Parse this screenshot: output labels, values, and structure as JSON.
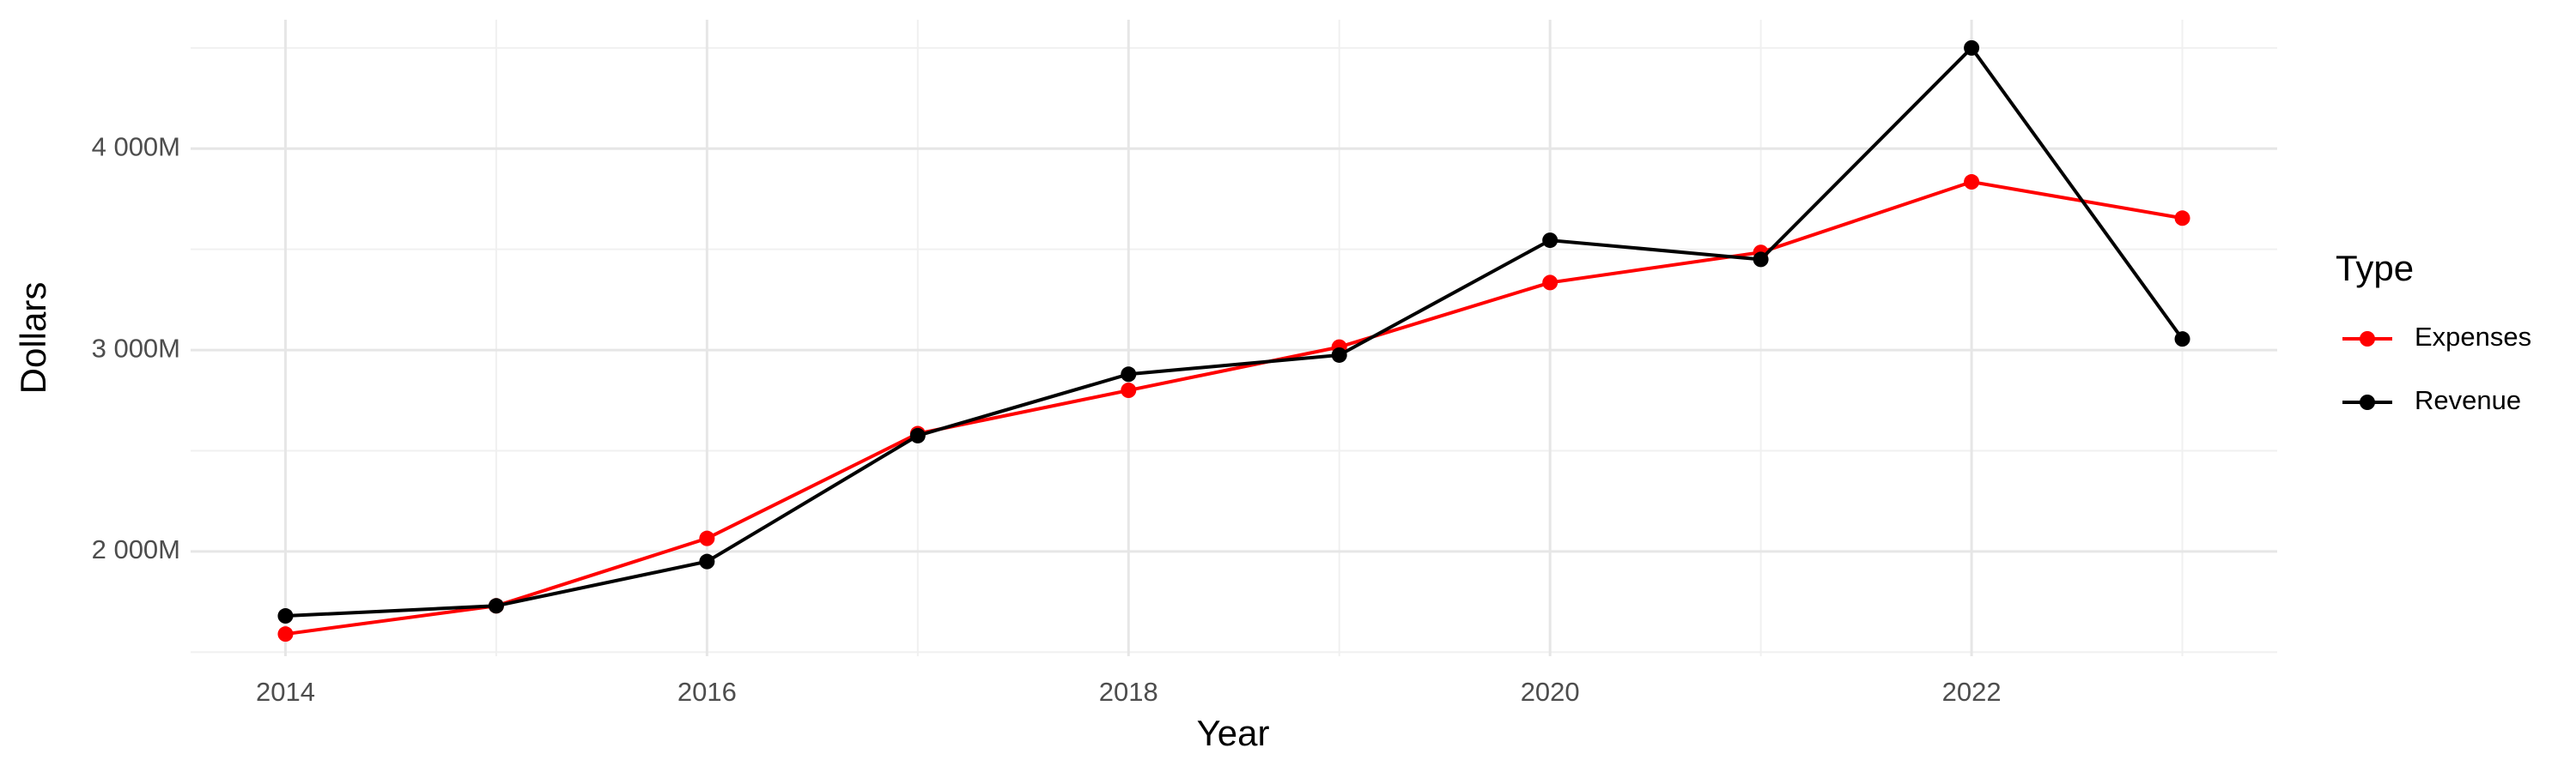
{
  "chart_data": {
    "type": "line",
    "x_label": "Year",
    "y_label": "Dollars",
    "x": [
      2014,
      2015,
      2016,
      2017,
      2018,
      2019,
      2020,
      2021,
      2022,
      2023
    ],
    "series": [
      {
        "name": "Expenses",
        "color": "#ff0000",
        "values": [
          1590,
          1730,
          2065,
          2585,
          2800,
          3015,
          3335,
          3485,
          3835,
          3655
        ]
      },
      {
        "name": "Revenue",
        "color": "#000000",
        "values": [
          1680,
          1730,
          1950,
          2575,
          2880,
          2975,
          3545,
          3450,
          4500,
          3055
        ]
      }
    ],
    "xlim": [
      2013.55,
      2023.45
    ],
    "xticks": [
      2014,
      2016,
      2018,
      2020,
      2022
    ],
    "x_minor_ticks": [
      2015,
      2017,
      2019,
      2021,
      2023
    ],
    "ylim": [
      1480,
      4640
    ],
    "yticks": [
      {
        "value": 2000,
        "label": "2 000M"
      },
      {
        "value": 3000,
        "label": "3 000M"
      },
      {
        "value": 4000,
        "label": "4 000M"
      }
    ],
    "y_minor_ticks": [
      1500,
      2500,
      3500,
      4500
    ],
    "grid": true,
    "legend_title": "Type",
    "legend_position": "right"
  }
}
